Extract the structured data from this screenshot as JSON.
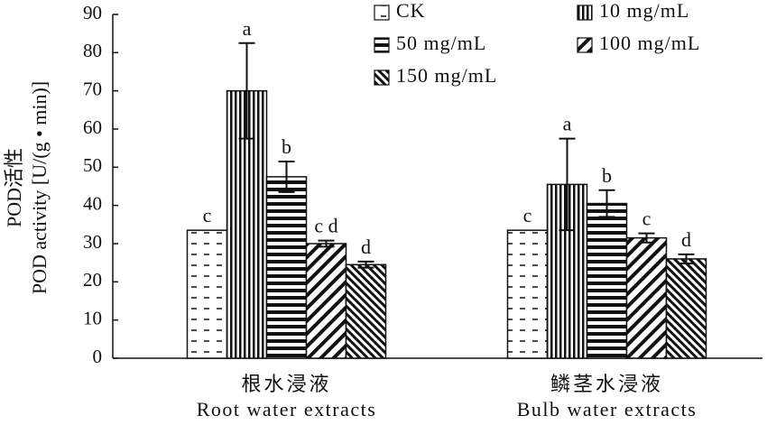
{
  "chart_data": {
    "type": "bar",
    "ylabel": [
      "POD活性",
      "POD activity [U/(g • min)]"
    ],
    "categories": [
      "根水浸液",
      "鳞茎水浸液"
    ],
    "categories_en": [
      "Root water extracts",
      "Bulb water extracts"
    ],
    "ylim": [
      0,
      90
    ],
    "yticks": [
      0,
      10,
      20,
      30,
      40,
      50,
      60,
      70,
      80,
      90
    ],
    "series": [
      {
        "name": "CK",
        "pattern": "dashes",
        "values": [
          33.5,
          33.5
        ],
        "errors": [
          null,
          null
        ],
        "labels": [
          "c",
          "c"
        ]
      },
      {
        "name": "10 mg/mL",
        "pattern": "vertical",
        "values": [
          70,
          45.5
        ],
        "errors": [
          12.5,
          12
        ],
        "labels": [
          "a",
          "a"
        ]
      },
      {
        "name": "50 mg/mL",
        "pattern": "horizontal",
        "values": [
          47.5,
          40.5
        ],
        "errors": [
          4,
          3.5
        ],
        "labels": [
          "b",
          "b"
        ]
      },
      {
        "name": "100 mg/mL",
        "pattern": "diagonal",
        "values": [
          30,
          31.5
        ],
        "errors": [
          0.8,
          1.2
        ],
        "labels": [
          "c d",
          "c"
        ]
      },
      {
        "name": "150 mg/mL",
        "pattern": "backdiagonal",
        "values": [
          24.5,
          26
        ],
        "errors": [
          0.8,
          1.2
        ],
        "labels": [
          "d",
          "d"
        ]
      }
    ]
  }
}
